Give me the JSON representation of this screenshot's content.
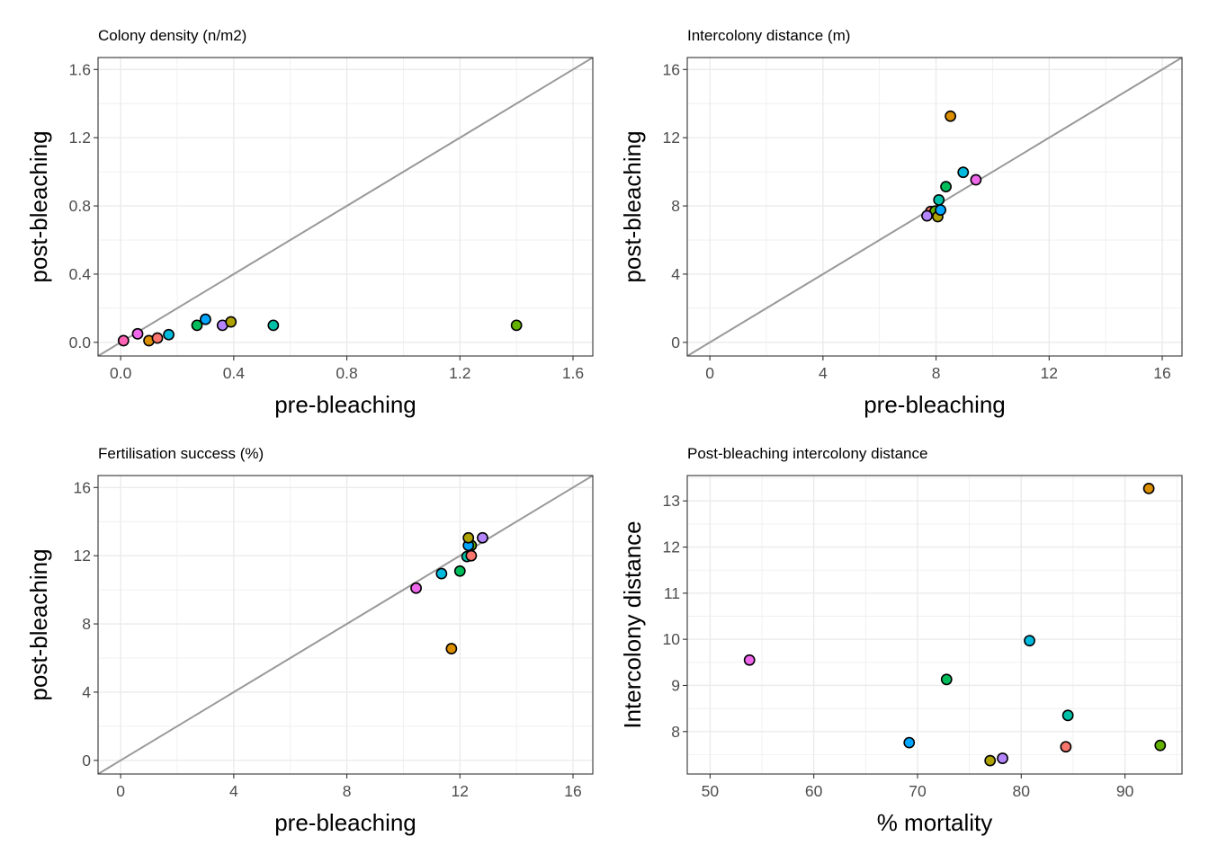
{
  "colors": {
    "A": "#F8766D",
    "B": "#DB8E00",
    "C": "#AEA200",
    "D": "#64B200",
    "E": "#00BD5C",
    "F": "#00C1A7",
    "G": "#00BADE",
    "H": "#00A6FF",
    "I": "#B385FF",
    "J": "#EF67EB",
    "K": "#FF63B6"
  },
  "chart_data": [
    {
      "type": "scatter",
      "title": "Colony density (n/m2)",
      "xlabel": "pre-bleaching",
      "ylabel": "post-bleaching",
      "xlim": [
        -0.08,
        1.67
      ],
      "ylim": [
        -0.08,
        1.67
      ],
      "xticks": [
        0.0,
        0.4,
        0.8,
        1.2,
        1.6
      ],
      "xtick_labels": [
        "0.0",
        "0.4",
        "0.8",
        "1.2",
        "1.6"
      ],
      "yticks": [
        0.0,
        0.4,
        0.8,
        1.2,
        1.6
      ],
      "ytick_labels": [
        "0.0",
        "0.4",
        "0.8",
        "1.2",
        "1.6"
      ],
      "reference_line": "y = x",
      "grid": true,
      "points": [
        {
          "group": "K",
          "x": 0.01,
          "y": 0.01
        },
        {
          "group": "J",
          "x": 0.06,
          "y": 0.05
        },
        {
          "group": "B",
          "x": 0.1,
          "y": 0.01
        },
        {
          "group": "A",
          "x": 0.13,
          "y": 0.025
        },
        {
          "group": "G",
          "x": 0.17,
          "y": 0.045
        },
        {
          "group": "E",
          "x": 0.27,
          "y": 0.1
        },
        {
          "group": "H",
          "x": 0.3,
          "y": 0.135
        },
        {
          "group": "I",
          "x": 0.36,
          "y": 0.1
        },
        {
          "group": "C",
          "x": 0.39,
          "y": 0.12
        },
        {
          "group": "F",
          "x": 0.54,
          "y": 0.1
        },
        {
          "group": "D",
          "x": 1.4,
          "y": 0.1
        }
      ]
    },
    {
      "type": "scatter",
      "title": "Intercolony distance (m)",
      "xlabel": "pre-bleaching",
      "ylabel": "post-bleaching",
      "xlim": [
        -0.8,
        16.7
      ],
      "ylim": [
        -0.8,
        16.7
      ],
      "xticks": [
        0,
        4,
        8,
        12,
        16
      ],
      "xtick_labels": [
        "0",
        "4",
        "8",
        "12",
        "16"
      ],
      "yticks": [
        0,
        4,
        8,
        12,
        16
      ],
      "ytick_labels": [
        "0",
        "4",
        "8",
        "12",
        "16"
      ],
      "reference_line": "y = x",
      "grid": true,
      "points": [
        {
          "group": "B",
          "x": 8.51,
          "y": 13.26
        },
        {
          "group": "G",
          "x": 8.96,
          "y": 9.97
        },
        {
          "group": "J",
          "x": 9.41,
          "y": 9.53
        },
        {
          "group": "E",
          "x": 8.35,
          "y": 9.13
        },
        {
          "group": "F",
          "x": 8.1,
          "y": 8.35
        },
        {
          "group": "A",
          "x": 7.81,
          "y": 7.67
        },
        {
          "group": "D",
          "x": 7.97,
          "y": 7.7
        },
        {
          "group": "C",
          "x": 8.06,
          "y": 7.37
        },
        {
          "group": "I",
          "x": 7.68,
          "y": 7.42
        },
        {
          "group": "H",
          "x": 8.16,
          "y": 7.76
        }
      ]
    },
    {
      "type": "scatter",
      "title": "Fertilisation success (%)",
      "xlabel": "pre-bleaching",
      "ylabel": "post-bleaching",
      "xlim": [
        -0.8,
        16.7
      ],
      "ylim": [
        -0.8,
        16.7
      ],
      "xticks": [
        0,
        4,
        8,
        12,
        16
      ],
      "xtick_labels": [
        "0",
        "4",
        "8",
        "12",
        "16"
      ],
      "yticks": [
        0,
        4,
        8,
        12,
        16
      ],
      "ytick_labels": [
        "0",
        "4",
        "8",
        "12",
        "16"
      ],
      "reference_line": "y = x",
      "grid": true,
      "points": [
        {
          "group": "B",
          "x": 11.7,
          "y": 6.55
        },
        {
          "group": "J",
          "x": 10.45,
          "y": 10.1
        },
        {
          "group": "G",
          "x": 11.35,
          "y": 10.95
        },
        {
          "group": "E",
          "x": 12.0,
          "y": 11.1
        },
        {
          "group": "F",
          "x": 12.25,
          "y": 11.95
        },
        {
          "group": "A",
          "x": 12.4,
          "y": 12.0
        },
        {
          "group": "D",
          "x": 12.4,
          "y": 12.6
        },
        {
          "group": "H",
          "x": 12.3,
          "y": 12.6
        },
        {
          "group": "C",
          "x": 12.3,
          "y": 13.05
        },
        {
          "group": "I",
          "x": 12.8,
          "y": 13.05
        }
      ]
    },
    {
      "type": "scatter",
      "title": "Post-bleaching intercolony distance",
      "xlabel": "% mortality",
      "ylabel": "Intercolony distance",
      "xlim": [
        47.8,
        95.5
      ],
      "ylim": [
        7.08,
        13.55
      ],
      "xticks": [
        50,
        60,
        70,
        80,
        90
      ],
      "xtick_labels": [
        "50",
        "60",
        "70",
        "80",
        "90"
      ],
      "yticks": [
        8,
        9,
        10,
        11,
        12,
        13
      ],
      "ytick_labels": [
        "8",
        "9",
        "10",
        "11",
        "12",
        "13"
      ],
      "reference_line": null,
      "grid": true,
      "points": [
        {
          "group": "B",
          "x": 92.3,
          "y": 13.27
        },
        {
          "group": "G",
          "x": 80.8,
          "y": 9.97
        },
        {
          "group": "J",
          "x": 53.8,
          "y": 9.55
        },
        {
          "group": "E",
          "x": 72.8,
          "y": 9.13
        },
        {
          "group": "F",
          "x": 84.5,
          "y": 8.35
        },
        {
          "group": "H",
          "x": 69.2,
          "y": 7.76
        },
        {
          "group": "A",
          "x": 84.3,
          "y": 7.67
        },
        {
          "group": "D",
          "x": 93.4,
          "y": 7.7
        },
        {
          "group": "C",
          "x": 77.0,
          "y": 7.37
        },
        {
          "group": "I",
          "x": 78.2,
          "y": 7.42
        }
      ]
    }
  ]
}
